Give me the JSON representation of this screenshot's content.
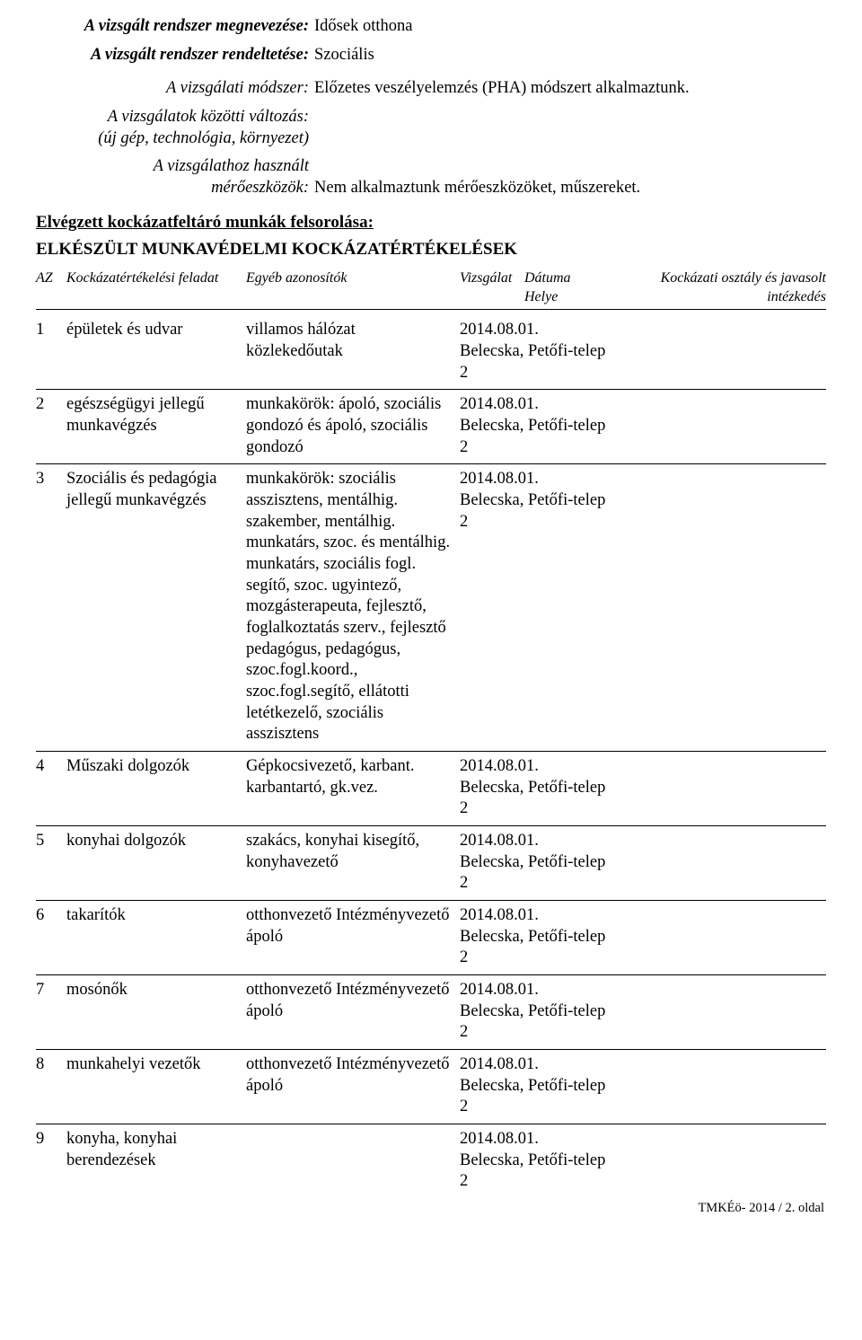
{
  "meta": {
    "l_name": "A vizsgált rendszer megnevezése:",
    "v_name": "Idősek otthona",
    "l_purpose": "A vizsgált rendszer rendeltetése:",
    "v_purpose": "Szociális",
    "l_method": "A vizsgálati módszer:",
    "v_method": "Előzetes veszélyelemzés (PHA) módszert alkalmaztunk.",
    "l_change1": "A vizsgálatok közötti változás:",
    "l_change2": "(új gép, technológia, környezet)",
    "l_tools1": "A vizsgálathoz használt",
    "l_tools2": "mérőeszközök:",
    "v_tools": "Nem alkalmaztunk mérőeszközöket, műszereket."
  },
  "section": {
    "title": "Elvégzett kockázatfeltáró munkák felsorolása:",
    "sub": "ELKÉSZÜLT MUNKAVÉDELMI KOCKÁZATÉRTÉKELÉSEK"
  },
  "headers": {
    "az": "AZ",
    "task": "Kockázatértékelési feladat",
    "other": "Egyéb azonosítók",
    "vizsgalat": "Vizsgálat",
    "datuma": "Dátuma",
    "helye": "Helye",
    "risk": "Kockázati osztály és javasolt intézkedés"
  },
  "rows": [
    {
      "az": "1",
      "task": "épületek és udvar",
      "other": "villamos hálózat közlekedőutak",
      "date": "2014.08.01.",
      "place": "Belecska, Petőfi-telep 2"
    },
    {
      "az": "2",
      "task": "egészségügyi jellegű munkavégzés",
      "other": "munkakörök: ápoló, szociális gondozó és ápoló, szociális gondozó",
      "date": "2014.08.01.",
      "place": "Belecska, Petőfi-telep 2"
    },
    {
      "az": "3",
      "task": "Szociális és pedagógia jellegű munkavégzés",
      "other": "munkakörök: szociális asszisztens, mentálhig. szakember, mentálhig. munkatárs, szoc. és mentálhig. munkatárs, szociális fogl. segítő, szoc. ugyintező, mozgásterapeuta, fejlesztő, foglalkoztatás szerv., fejlesztő pedagógus, pedagógus, szoc.fogl.koord., szoc.fogl.segítő, ellátotti letétkezelő, szociális asszisztens",
      "date": "2014.08.01.",
      "place": "Belecska, Petőfi-telep 2"
    },
    {
      "az": "4",
      "task": "Műszaki dolgozók",
      "other": "Gépkocsivezető, karbant. karbantartó, gk.vez.",
      "date": "2014.08.01.",
      "place": "Belecska, Petőfi-telep 2"
    },
    {
      "az": "5",
      "task": "konyhai dolgozók",
      "other": "szakács, konyhai kisegítő, konyhavezető",
      "date": "2014.08.01.",
      "place": "Belecska, Petőfi-telep 2"
    },
    {
      "az": "6",
      "task": "takarítók",
      "other": "otthonvezető Intézményvezető ápoló",
      "date": "2014.08.01.",
      "place": "Belecska, Petőfi-telep 2"
    },
    {
      "az": "7",
      "task": "mosónők",
      "other": "otthonvezető Intézményvezető ápoló",
      "date": "2014.08.01.",
      "place": "Belecska, Petőfi-telep 2"
    },
    {
      "az": "8",
      "task": "munkahelyi vezetők",
      "other": "otthonvezető Intézményvezető ápoló",
      "date": "2014.08.01.",
      "place": "Belecska, Petőfi-telep 2"
    },
    {
      "az": "9",
      "task": "konyha, konyhai berendezések",
      "other": "",
      "date": "2014.08.01.",
      "place": "Belecska, Petőfi-telep 2"
    }
  ],
  "footer": "TMKÉö- 2014  / 2. oldal"
}
